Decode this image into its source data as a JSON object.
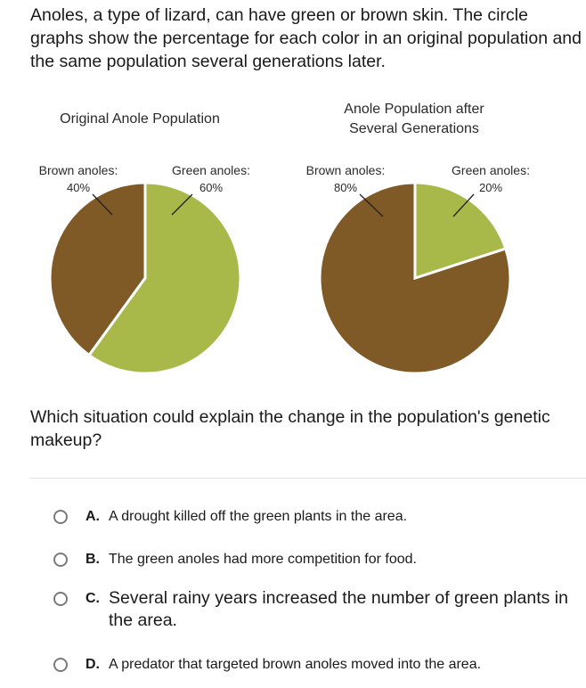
{
  "intro_text": "Anoles, a type of lizard, can have green or brown skin. The circle graphs show the percentage for each color in an original population and the same population several generations later.",
  "colors": {
    "brown": "#7f5a27",
    "green": "#a8b94a"
  },
  "chart_data": [
    {
      "type": "pie",
      "title": "Original Anole Population",
      "slices": [
        {
          "label": "Brown anoles:",
          "value": 40,
          "value_label": "40%"
        },
        {
          "label": "Green anoles:",
          "value": 60,
          "value_label": "60%"
        }
      ]
    },
    {
      "type": "pie",
      "title": "Anole Population after Several Generations",
      "title_lines": [
        "Anole Population after",
        "Several Generations"
      ],
      "slices": [
        {
          "label": "Brown anoles:",
          "value": 80,
          "value_label": "80%"
        },
        {
          "label": "Green anoles:",
          "value": 20,
          "value_label": "20%"
        }
      ]
    }
  ],
  "question": "Which situation could explain the change in the population's genetic makeup?",
  "options": [
    {
      "letter": "A.",
      "text": "A drought killed off the green plants in the area."
    },
    {
      "letter": "B.",
      "text": "The green anoles had more competition for food."
    },
    {
      "letter": "C.",
      "text": "Several rainy years increased the number of green plants in the area."
    },
    {
      "letter": "D.",
      "text": "A predator that targeted brown anoles moved into the area."
    }
  ]
}
